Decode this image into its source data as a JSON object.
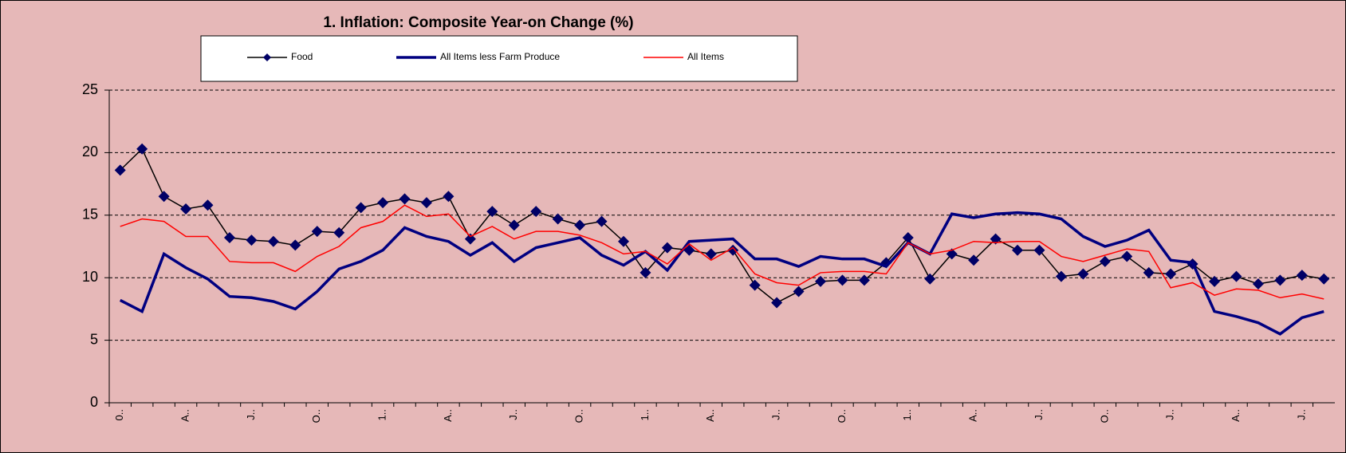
{
  "chart_data": {
    "type": "line",
    "title": "1. Inflation: Composite Year-on Change (%)",
    "categories": [
      "0..",
      null,
      null,
      "A..",
      null,
      null,
      "J..",
      null,
      null,
      "O..",
      null,
      null,
      "1..",
      null,
      null,
      "A..",
      null,
      null,
      "J..",
      null,
      null,
      "O..",
      null,
      null,
      "1..",
      null,
      null,
      "A..",
      null,
      null,
      "J..",
      null,
      null,
      "O..",
      null,
      null,
      "1..",
      null,
      null,
      "A..",
      null,
      null,
      "J..",
      null,
      null,
      "O..",
      null,
      null,
      "J..",
      null,
      null,
      "A..",
      null,
      null,
      "J..",
      null
    ],
    "series": [
      {
        "name": "Food",
        "color": "#000000",
        "marker_color": "#000066",
        "values": [
          18.6,
          20.3,
          16.5,
          15.5,
          15.8,
          13.2,
          13.0,
          12.9,
          12.6,
          13.7,
          13.6,
          15.6,
          16.0,
          16.3,
          16.0,
          16.5,
          13.1,
          15.3,
          14.2,
          15.3,
          14.7,
          14.2,
          14.5,
          12.9,
          10.4,
          12.4,
          12.2,
          11.9,
          12.2,
          9.4,
          8.0,
          8.9,
          9.7,
          9.8,
          9.8,
          11.2,
          13.2,
          9.9,
          11.9,
          11.4,
          13.1,
          12.2,
          12.2,
          10.1,
          10.3,
          11.3,
          11.7,
          10.4,
          10.3,
          11.1,
          9.7,
          10.1,
          9.5,
          9.8,
          10.2,
          9.9
        ]
      },
      {
        "name": "All Items less Farm Produce",
        "color": "#000080",
        "values": [
          8.2,
          7.3,
          11.9,
          10.8,
          9.9,
          8.5,
          8.4,
          8.1,
          7.5,
          8.9,
          10.7,
          11.3,
          12.2,
          14.0,
          13.3,
          12.9,
          11.8,
          12.8,
          11.3,
          12.4,
          12.8,
          13.2,
          11.8,
          11.0,
          12.1,
          10.6,
          12.9,
          13.0,
          13.1,
          11.5,
          11.5,
          10.9,
          11.7,
          11.5,
          11.5,
          10.9,
          12.8,
          11.9,
          15.1,
          14.8,
          15.1,
          15.2,
          15.1,
          14.7,
          13.3,
          12.5,
          13.0,
          13.8,
          11.4,
          11.2,
          7.3,
          6.9,
          6.4,
          5.5,
          6.8,
          7.3
        ]
      },
      {
        "name": "All Items",
        "color": "#ff0000",
        "values": [
          14.1,
          14.7,
          14.5,
          13.3,
          13.3,
          11.3,
          11.2,
          11.2,
          10.5,
          11.7,
          12.5,
          14.0,
          14.5,
          15.8,
          14.9,
          15.1,
          13.3,
          14.1,
          13.1,
          13.7,
          13.7,
          13.4,
          12.8,
          11.9,
          12.1,
          11.1,
          12.7,
          11.4,
          12.4,
          10.3,
          9.6,
          9.4,
          10.4,
          10.5,
          10.5,
          10.3,
          12.8,
          11.9,
          12.2,
          12.9,
          12.8,
          12.9,
          12.9,
          11.7,
          11.3,
          11.8,
          12.3,
          12.1,
          9.2,
          9.6,
          8.6,
          9.1,
          9.0,
          8.4,
          8.7,
          8.3
        ]
      }
    ],
    "ylim": [
      0,
      25
    ],
    "yticks": [
      0,
      5,
      10,
      15,
      20,
      25
    ],
    "grid": true
  }
}
